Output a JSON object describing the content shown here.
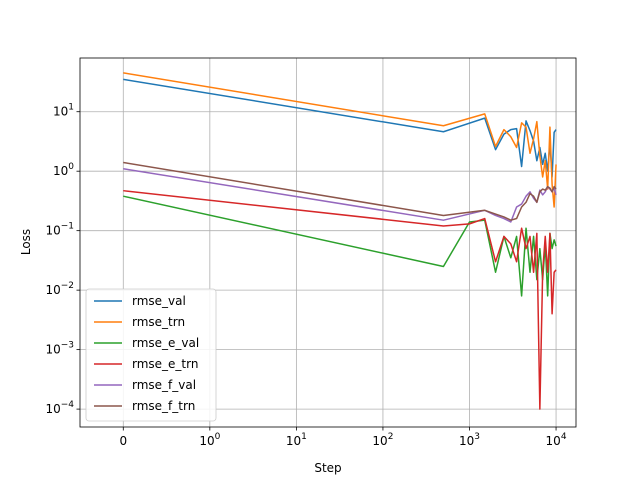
{
  "chart_data": {
    "type": "line",
    "title": "",
    "xlabel": "Step",
    "ylabel": "Loss",
    "xscale": "symlog",
    "yscale": "log",
    "xlim": [
      -0.5,
      17000
    ],
    "ylim": [
      5e-05,
      80
    ],
    "grid": true,
    "legend_position": "lower-left",
    "x_ticks": [
      {
        "value": 0,
        "label": "0"
      },
      {
        "value": 1,
        "label": "10^0"
      },
      {
        "value": 10,
        "label": "10^1"
      },
      {
        "value": 100,
        "label": "10^2"
      },
      {
        "value": 1000,
        "label": "10^3"
      },
      {
        "value": 10000,
        "label": "10^4"
      }
    ],
    "y_ticks": [
      {
        "value": 0.0001,
        "label": "10^-4"
      },
      {
        "value": 0.001,
        "label": "10^-3"
      },
      {
        "value": 0.01,
        "label": "10^-2"
      },
      {
        "value": 0.1,
        "label": "10^-1"
      },
      {
        "value": 1,
        "label": "10^0"
      },
      {
        "value": 10,
        "label": "10^1"
      }
    ],
    "series": [
      {
        "name": "rmse_val",
        "color": "#1f77b4",
        "x": [
          0,
          500,
          1500,
          2000,
          2500,
          3000,
          3500,
          4000,
          4500,
          5000,
          5500,
          6000,
          6500,
          7000,
          7500,
          8000,
          8500,
          9000,
          9500,
          10000
        ],
        "y": [
          35,
          4.6,
          7.8,
          2.3,
          4.2,
          5.0,
          5.2,
          1.2,
          7.0,
          4.8,
          3.2,
          1.5,
          2.5,
          1.3,
          2.0,
          1.0,
          3.0,
          0.8,
          4.5,
          5.0
        ]
      },
      {
        "name": "rmse_trn",
        "color": "#ff7f0e",
        "x": [
          0,
          500,
          1500,
          2000,
          2500,
          3000,
          3500,
          4000,
          4500,
          5000,
          5500,
          6000,
          6500,
          7000,
          7500,
          8000,
          8500,
          9000,
          9500,
          10000
        ],
        "y": [
          45,
          5.8,
          9.2,
          2.6,
          5.0,
          3.8,
          2.5,
          6.5,
          5.5,
          2.0,
          3.5,
          6.8,
          1.8,
          0.8,
          1.5,
          0.5,
          5.5,
          0.6,
          0.25,
          1.3
        ]
      },
      {
        "name": "rmse_e_val",
        "color": "#2ca02c",
        "x": [
          0,
          500,
          1000,
          1500,
          2000,
          2500,
          3000,
          3500,
          4000,
          4500,
          5000,
          5500,
          6000,
          6500,
          7000,
          7500,
          8000,
          8500,
          9000,
          9500,
          10000
        ],
        "y": [
          0.38,
          0.025,
          0.14,
          0.15,
          0.02,
          0.08,
          0.035,
          0.08,
          0.008,
          0.11,
          0.02,
          0.08,
          0.015,
          0.05,
          0.015,
          0.06,
          0.008,
          0.09,
          0.05,
          0.07,
          0.055
        ]
      },
      {
        "name": "rmse_e_trn",
        "color": "#d62728",
        "x": [
          0,
          500,
          1000,
          1500,
          2000,
          2500,
          3000,
          3500,
          4000,
          4500,
          5000,
          5500,
          6000,
          6500,
          7000,
          7500,
          8000,
          8500,
          9000,
          9500,
          10000
        ],
        "y": [
          0.47,
          0.12,
          0.13,
          0.16,
          0.03,
          0.08,
          0.06,
          0.03,
          0.11,
          0.05,
          0.08,
          0.02,
          0.09,
          0.0001,
          0.02,
          0.08,
          0.02,
          0.09,
          0.004,
          0.02,
          0.022
        ]
      },
      {
        "name": "rmse_f_val",
        "color": "#9467bd",
        "x": [
          0,
          500,
          1500,
          2000,
          2500,
          3000,
          3500,
          4000,
          4500,
          5000,
          5500,
          6000,
          6500,
          7000,
          7500,
          8000,
          8500,
          9000,
          9500,
          10000
        ],
        "y": [
          1.1,
          0.15,
          0.22,
          0.18,
          0.16,
          0.14,
          0.25,
          0.28,
          0.38,
          0.45,
          0.35,
          0.3,
          0.48,
          0.4,
          0.45,
          0.55,
          0.5,
          0.45,
          0.52,
          0.4
        ]
      },
      {
        "name": "rmse_f_trn",
        "color": "#8c564b",
        "x": [
          0,
          500,
          1500,
          2000,
          2500,
          3000,
          3500,
          4000,
          4500,
          5000,
          5500,
          6000,
          6500,
          7000,
          7500,
          8000,
          8500,
          9000,
          9500,
          10000
        ],
        "y": [
          1.4,
          0.18,
          0.22,
          0.19,
          0.17,
          0.15,
          0.16,
          0.25,
          0.3,
          0.42,
          0.38,
          0.3,
          0.45,
          0.5,
          0.48,
          0.55,
          0.52,
          0.45,
          0.55,
          0.5
        ]
      }
    ]
  }
}
